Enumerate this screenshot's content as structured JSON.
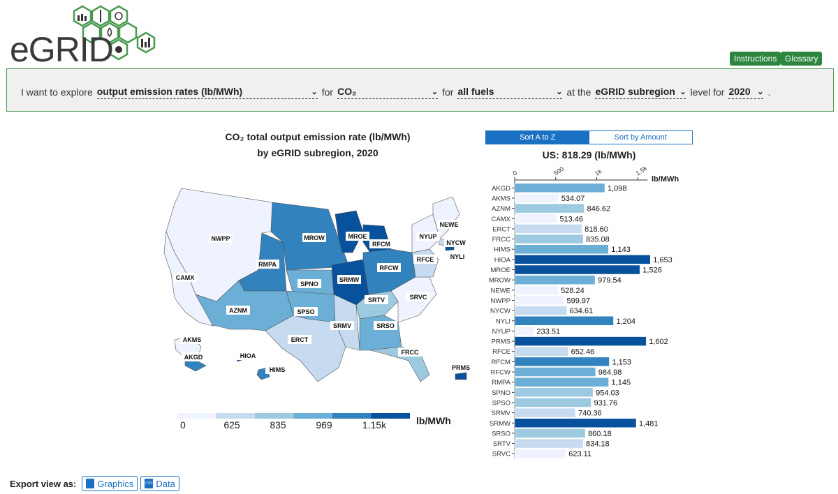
{
  "logo": {
    "text": "eGRID"
  },
  "header": {
    "instructions_label": "Instructions",
    "glossary_label": "Glossary"
  },
  "query": {
    "prefix": "I want to explore",
    "metric": "output emission rates (lb/MWh)",
    "for1": "for",
    "pollutant": "CO₂",
    "for2": "for",
    "fuel": "all fuels",
    "at_the": "at the",
    "level": "eGRID subregion",
    "level_for": "level for",
    "year": "2020",
    "period": "."
  },
  "map": {
    "title_line1": "CO₂ total output emission rate (lb/MWh)",
    "title_line2": "by eGRID subregion, 2020",
    "legend": {
      "ticks": [
        "0",
        "625",
        "835",
        "969",
        "1.15k"
      ],
      "unit": "lb/MWh",
      "colors": [
        "#eff3ff",
        "#c6dbef",
        "#9ecae1",
        "#6baed6",
        "#3182bd",
        "#08519c"
      ]
    },
    "regions": [
      {
        "code": "NWPP",
        "color": "#eff3ff"
      },
      {
        "code": "CAMX",
        "color": "#eff3ff"
      },
      {
        "code": "RMPA",
        "color": "#3182bd"
      },
      {
        "code": "AZNM",
        "color": "#6baed6"
      },
      {
        "code": "MROW",
        "color": "#3182bd"
      },
      {
        "code": "MROE",
        "color": "#08519c"
      },
      {
        "code": "RFCM",
        "color": "#08519c"
      },
      {
        "code": "SPNO",
        "color": "#6baed6"
      },
      {
        "code": "SRMW",
        "color": "#08519c"
      },
      {
        "code": "RFCW",
        "color": "#3182bd"
      },
      {
        "code": "SPSO",
        "color": "#6baed6"
      },
      {
        "code": "ERCT",
        "color": "#c6dbef"
      },
      {
        "code": "SRMV",
        "color": "#c6dbef"
      },
      {
        "code": "SRTV",
        "color": "#9ecae1"
      },
      {
        "code": "SRSO",
        "color": "#6baed6"
      },
      {
        "code": "SRVC",
        "color": "#eff3ff"
      },
      {
        "code": "FRCC",
        "color": "#9ecae1"
      },
      {
        "code": "RFCE",
        "color": "#c6dbef"
      },
      {
        "code": "NYUP",
        "color": "#eff3ff"
      },
      {
        "code": "NEWE",
        "color": "#eff3ff"
      },
      {
        "code": "NYCW",
        "color": "#c6dbef"
      },
      {
        "code": "NYLI",
        "color": "#08519c"
      },
      {
        "code": "AKMS",
        "color": "#eff3ff"
      },
      {
        "code": "AKGD",
        "color": "#3182bd"
      },
      {
        "code": "HIOA",
        "color": "#08519c"
      },
      {
        "code": "HIMS",
        "color": "#3182bd"
      },
      {
        "code": "PRMS",
        "color": "#08519c"
      }
    ]
  },
  "sort": {
    "az_label": "Sort A to Z",
    "amount_label": "Sort by Amount"
  },
  "us_total": "US: 818.29 (lb/MWh)",
  "chart_data": {
    "type": "bar",
    "orientation": "horizontal",
    "unit": "lb/MWh",
    "xticks": [
      "0",
      "500",
      "1k",
      "1.5k"
    ],
    "xlim": [
      0,
      1800
    ],
    "categories": [
      "AKGD",
      "AKMS",
      "AZNM",
      "CAMX",
      "ERCT",
      "FRCC",
      "HIMS",
      "HIOA",
      "MROE",
      "MROW",
      "NEWE",
      "NWPP",
      "NYCW",
      "NYLI",
      "NYUP",
      "PRMS",
      "RFCE",
      "RFCM",
      "RFCW",
      "RMPA",
      "SPNO",
      "SPSO",
      "SRMV",
      "SRMW",
      "SRSO",
      "SRTV",
      "SRVC"
    ],
    "values": [
      1098,
      534.07,
      846.62,
      513.46,
      818.6,
      835.08,
      1143,
      1653,
      1526,
      979.54,
      528.24,
      599.97,
      634.61,
      1204,
      233.51,
      1602,
      652.46,
      1153,
      984.98,
      1145,
      954.03,
      931.76,
      740.36,
      1481,
      860.18,
      834.18,
      623.11
    ],
    "labels": [
      "1,098",
      "534.07",
      "846.62",
      "513.46",
      "818.60",
      "835.08",
      "1,143",
      "1,653",
      "1,526",
      "979.54",
      "528.24",
      "599.97",
      "634.61",
      "1,204",
      "233.51",
      "1,602",
      "652.46",
      "1,153",
      "984.98",
      "1,145",
      "954.03",
      "931.76",
      "740.36",
      "1,481",
      "860.18",
      "834.18",
      "623.11"
    ]
  },
  "export": {
    "label": "Export view as:",
    "graphics_label": "Graphics",
    "data_label": "Data",
    "data_icon_text": "CSV"
  }
}
